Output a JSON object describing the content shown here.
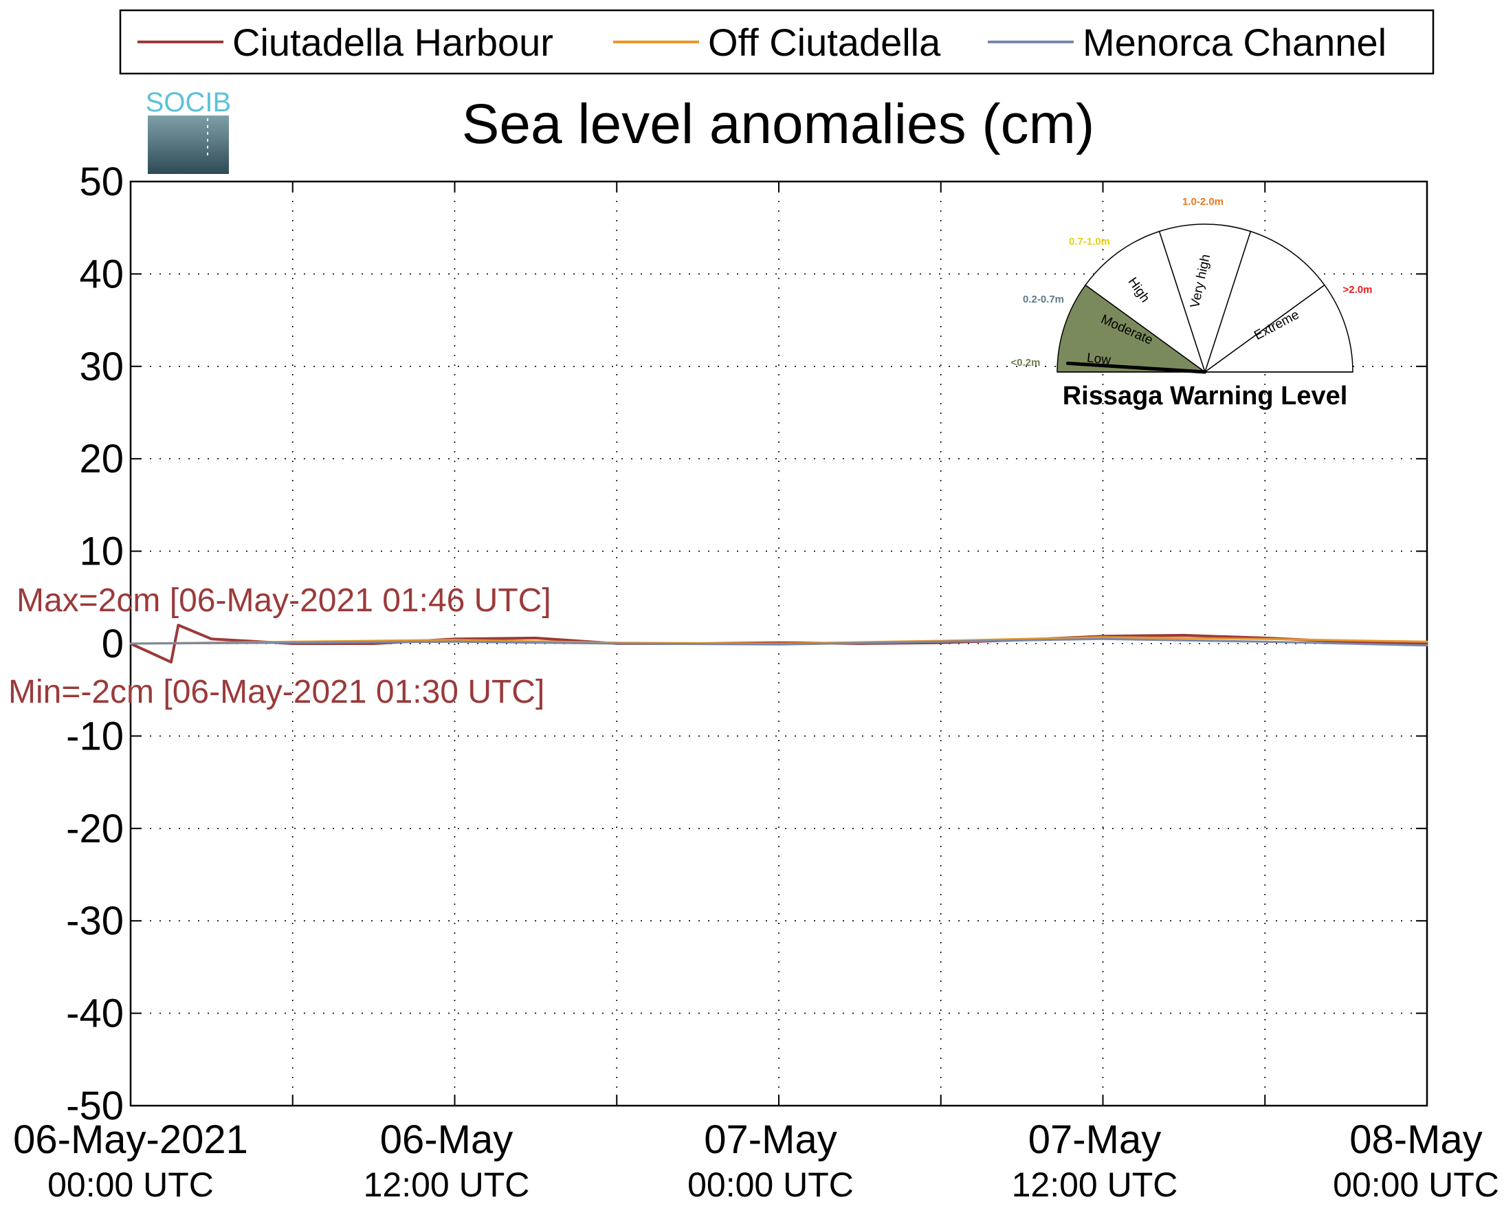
{
  "chart_data": {
    "type": "line",
    "title": "Sea level anomalies (cm)",
    "ylabel": "",
    "xlabel": "",
    "ylim": [
      -50,
      50
    ],
    "yticks": [
      50,
      40,
      30,
      20,
      10,
      0,
      -10,
      -20,
      -30,
      -40,
      -50
    ],
    "xlim": [
      "2021-05-06 00:00",
      "2021-05-08 00:00"
    ],
    "xtick_labels": [
      {
        "time": "2021-05-06 00:00",
        "line1": "06-May-2021",
        "line2": "00:00 UTC"
      },
      {
        "time": "2021-05-06 12:00",
        "line1": "06-May",
        "line2": "12:00 UTC"
      },
      {
        "time": "2021-05-07 00:00",
        "line1": "07-May",
        "line2": "00:00 UTC"
      },
      {
        "time": "2021-05-07 12:00",
        "line1": "07-May",
        "line2": "12:00 UTC"
      },
      {
        "time": "2021-05-08 00:00",
        "line1": "08-May",
        "line2": "00:00 UTC"
      }
    ],
    "grid": true,
    "legend_position": "top",
    "series": [
      {
        "name": "Ciutadella Harbour",
        "color": "#9b3a3a",
        "x": [
          "2021-05-06 00:00",
          "2021-05-06 01:30",
          "2021-05-06 01:46",
          "2021-05-06 03:00",
          "2021-05-06 06:00",
          "2021-05-06 09:00",
          "2021-05-06 12:00",
          "2021-05-06 15:00",
          "2021-05-06 18:00",
          "2021-05-06 21:00",
          "2021-05-07 00:00",
          "2021-05-07 03:00",
          "2021-05-07 06:00",
          "2021-05-07 09:00",
          "2021-05-07 12:00",
          "2021-05-07 15:00",
          "2021-05-07 18:00",
          "2021-05-07 21:00",
          "2021-05-08 00:00"
        ],
        "y": [
          0,
          -2,
          2,
          0.5,
          0,
          0,
          0.5,
          0.6,
          0,
          0,
          0.1,
          0,
          0.1,
          0.4,
          0.8,
          0.9,
          0.6,
          0.2,
          0
        ]
      },
      {
        "name": "Off Ciutadella",
        "color": "#e8962a",
        "x": [
          "2021-05-06 00:00",
          "2021-05-06 06:00",
          "2021-05-06 12:00",
          "2021-05-06 18:00",
          "2021-05-07 00:00",
          "2021-05-07 06:00",
          "2021-05-07 12:00",
          "2021-05-07 18:00",
          "2021-05-08 00:00"
        ],
        "y": [
          0,
          0.2,
          0.4,
          0.1,
          0,
          0.3,
          0.7,
          0.5,
          0.2
        ]
      },
      {
        "name": "Menorca Channel",
        "color": "#7788aa",
        "x": [
          "2021-05-06 00:00",
          "2021-05-06 06:00",
          "2021-05-06 12:00",
          "2021-05-06 18:00",
          "2021-05-07 00:00",
          "2021-05-07 06:00",
          "2021-05-07 12:00",
          "2021-05-07 18:00",
          "2021-05-08 00:00"
        ],
        "y": [
          0,
          0.1,
          0.2,
          0,
          -0.1,
          0.2,
          0.5,
          0.2,
          -0.2
        ]
      }
    ],
    "annotations": {
      "max_label": "Max=2cm [06-May-2021 01:46 UTC]",
      "min_label": "Min=-2cm [06-May-2021 01:30 UTC]",
      "color": "#9b3a3a"
    }
  },
  "logo": {
    "text": "SOCIB"
  },
  "gauge": {
    "title": "Rissaga Warning Level",
    "levels": [
      {
        "label": "Low",
        "range": "<0.2m",
        "range_color": "#6f8050",
        "fill": "#7a8a5c",
        "active": true
      },
      {
        "label": "Moderate",
        "range": "0.2-0.7m",
        "range_color": "#5e7a8a",
        "fill": "#ffffff",
        "active": false
      },
      {
        "label": "High",
        "range": "0.7-1.0m",
        "range_color": "#e6cf1a",
        "fill": "#ffffff",
        "active": false
      },
      {
        "label": "Very high",
        "range": "1.0-2.0m",
        "range_color": "#e8781e",
        "fill": "#ffffff",
        "active": false
      },
      {
        "label": "Extreme",
        "range": ">2.0m",
        "range_color": "#e81c1c",
        "fill": "#ffffff",
        "active": false
      }
    ]
  }
}
